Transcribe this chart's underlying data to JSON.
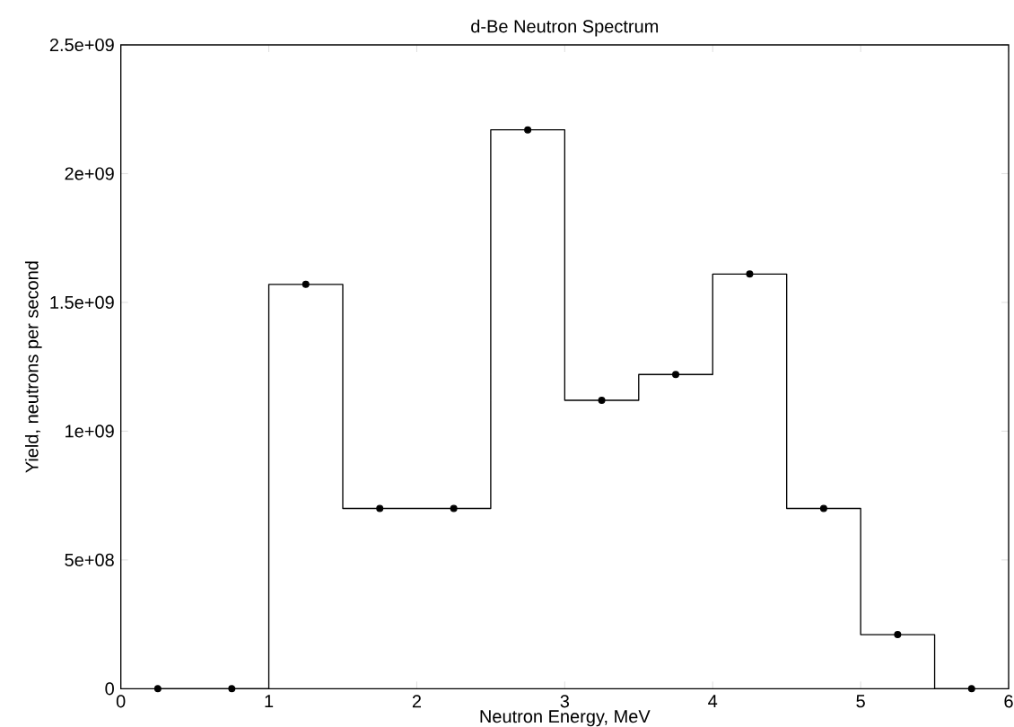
{
  "chart_data": {
    "type": "step",
    "title": "d-Be Neutron Spectrum",
    "xlabel": "Neutron Energy, MeV",
    "ylabel": "Yield, neutrons per second",
    "x": [
      0.25,
      0.75,
      1.25,
      1.75,
      2.25,
      2.75,
      3.25,
      3.75,
      4.25,
      4.75,
      5.25,
      5.75
    ],
    "values": [
      0,
      0,
      1570000000.0,
      700000000.0,
      700000000.0,
      2170000000.0,
      1120000000.0,
      1220000000.0,
      1610000000.0,
      700000000.0,
      210000000.0,
      0
    ],
    "color": "#000000",
    "marker": "circle",
    "grid": false,
    "xlim": [
      0,
      6
    ],
    "xticks": [
      0,
      1,
      2,
      3,
      4,
      5,
      6
    ],
    "ylim": [
      0,
      2500000000.0
    ],
    "yticks": [
      {
        "value": 0,
        "label": "0"
      },
      {
        "value": 500000000.0,
        "label": "5e+08"
      },
      {
        "value": 1000000000.0,
        "label": "1e+09"
      },
      {
        "value": 1500000000.0,
        "label": "1.5e+09"
      },
      {
        "value": 2000000000.0,
        "label": "2e+09"
      },
      {
        "value": 2500000000.0,
        "label": "2.5e+09"
      }
    ]
  }
}
